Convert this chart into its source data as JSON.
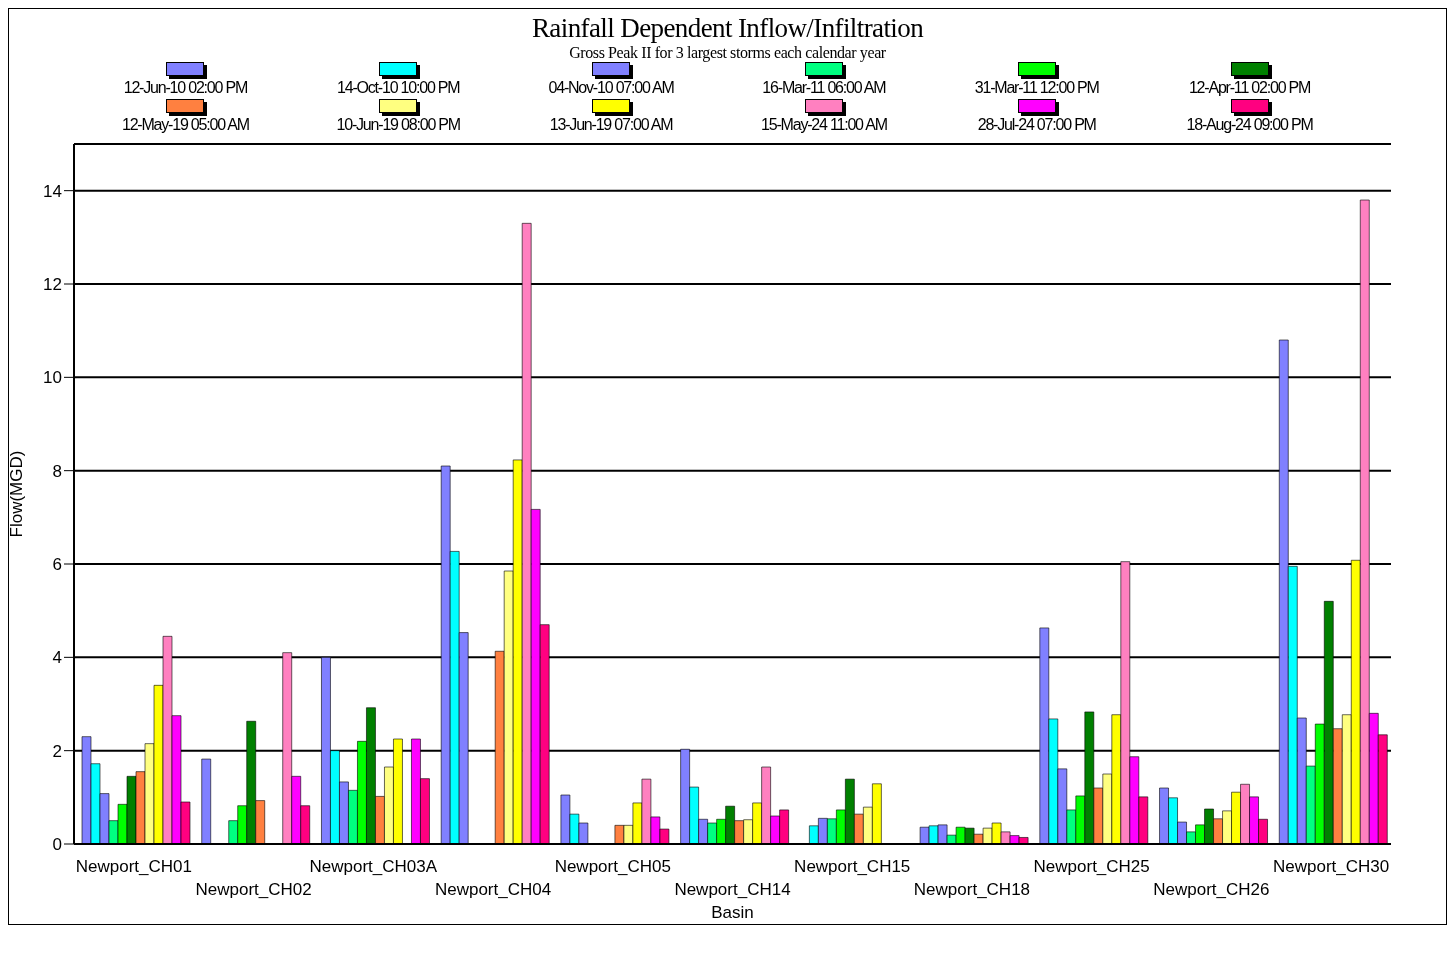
{
  "chart_data": {
    "type": "bar",
    "title": "Rainfall Dependent Inflow/Infiltration",
    "subtitle": "Gross Peak II for 3 largest storms each calendar year",
    "xlabel": "Basin",
    "ylabel": "Flow(MGD)",
    "categories": [
      "Newport_CH01",
      "Newport_CH02",
      "Newport_CH03A",
      "Newport_CH04",
      "Newport_CH05",
      "Newport_CH14",
      "Newport_CH15",
      "Newport_CH18",
      "Newport_CH25",
      "Newport_CH26",
      "Newport_CH30"
    ],
    "ylim": [
      0,
      15
    ],
    "yticks": [
      0,
      2,
      4,
      6,
      8,
      10,
      12,
      14
    ],
    "grid": "y",
    "legend": "top",
    "series": [
      {
        "name": "12-Jun-10 02:00 PM",
        "color": "#8080ff",
        "values": [
          2.3,
          1.82,
          4.0,
          8.1,
          1.05,
          2.03,
          null,
          0.36,
          4.63,
          1.2,
          10.8
        ]
      },
      {
        "name": "14-Oct-10 10:00 PM",
        "color": "#00ffff",
        "values": [
          1.72,
          null,
          2.0,
          6.27,
          0.64,
          1.22,
          0.39,
          0.39,
          2.68,
          0.99,
          5.95
        ]
      },
      {
        "name": "04-Nov-10 07:00 AM",
        "color": "#8080ff",
        "values": [
          1.08,
          null,
          1.33,
          4.53,
          0.45,
          0.53,
          0.55,
          0.41,
          1.61,
          0.47,
          2.7
        ]
      },
      {
        "name": "16-Mar-11 06:00 AM",
        "color": "#00ff80",
        "values": [
          0.5,
          0.5,
          1.15,
          null,
          null,
          0.45,
          0.54,
          0.19,
          0.73,
          0.26,
          1.67
        ]
      },
      {
        "name": "31-Mar-11 12:00 PM",
        "color": "#00ff00",
        "values": [
          0.85,
          0.82,
          2.2,
          null,
          null,
          0.53,
          0.73,
          0.36,
          1.03,
          0.41,
          2.57
        ]
      },
      {
        "name": "12-Apr-11 02:00 PM",
        "color": "#008000",
        "values": [
          1.45,
          2.63,
          2.92,
          null,
          null,
          0.81,
          1.39,
          0.34,
          2.83,
          0.75,
          5.2
        ]
      },
      {
        "name": "12-May-19 05:00 AM",
        "color": "#ff8040",
        "values": [
          1.55,
          0.93,
          1.02,
          4.13,
          0.4,
          0.5,
          0.64,
          0.21,
          1.2,
          0.54,
          2.47
        ]
      },
      {
        "name": "10-Jun-19 08:00 PM",
        "color": "#ffff80",
        "values": [
          2.15,
          null,
          1.65,
          5.85,
          0.4,
          0.52,
          0.79,
          0.34,
          1.5,
          0.71,
          2.77
        ]
      },
      {
        "name": "13-Jun-19 07:00 AM",
        "color": "#ffff00",
        "values": [
          3.4,
          null,
          2.25,
          8.23,
          0.88,
          0.88,
          1.29,
          0.45,
          2.77,
          1.11,
          6.08
        ]
      },
      {
        "name": "15-May-24 11:00 AM",
        "color": "#ff80c0",
        "values": [
          4.45,
          4.1,
          null,
          13.3,
          1.39,
          1.65,
          null,
          0.26,
          6.05,
          1.28,
          13.8
        ]
      },
      {
        "name": "28-Jul-24 07:00 PM",
        "color": "#ff00ff",
        "values": [
          2.75,
          1.45,
          2.25,
          7.17,
          0.58,
          0.6,
          null,
          0.18,
          1.87,
          1.01,
          2.8
        ]
      },
      {
        "name": "18-Aug-24 09:00 PM",
        "color": "#ff0080",
        "values": [
          0.9,
          0.82,
          1.4,
          4.7,
          0.32,
          0.73,
          null,
          0.14,
          1.01,
          0.53,
          2.34
        ]
      }
    ]
  }
}
